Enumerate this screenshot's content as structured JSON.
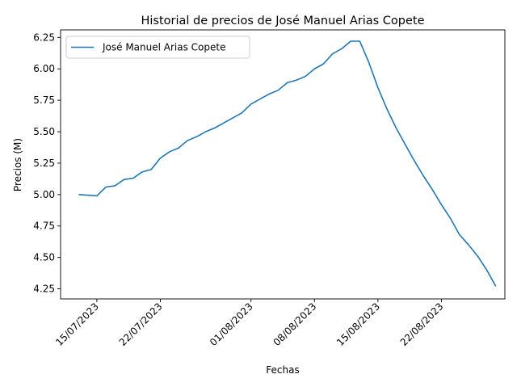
{
  "chart_data": {
    "type": "line",
    "title": "Historial de precios de José Manuel Arias Copete",
    "xlabel": "Fechas",
    "ylabel": "Precios (M)",
    "legend_position": "upper-left",
    "grid": false,
    "xlim": [
      "2023-07-11",
      "2023-08-29"
    ],
    "ylim": [
      4.17,
      6.31
    ],
    "x_ticks": [
      {
        "date": "2023-07-15",
        "label": "15/07/2023"
      },
      {
        "date": "2023-07-22",
        "label": "22/07/2023"
      },
      {
        "date": "2023-08-01",
        "label": "01/08/2023"
      },
      {
        "date": "2023-08-08",
        "label": "08/08/2023"
      },
      {
        "date": "2023-08-15",
        "label": "15/08/2023"
      },
      {
        "date": "2023-08-22",
        "label": "22/08/2023"
      }
    ],
    "y_ticks": [
      {
        "value": 4.25,
        "label": "4.25"
      },
      {
        "value": 4.5,
        "label": "4.50"
      },
      {
        "value": 4.75,
        "label": "4.75"
      },
      {
        "value": 5.0,
        "label": "5.00"
      },
      {
        "value": 5.25,
        "label": "5.25"
      },
      {
        "value": 5.5,
        "label": "5.50"
      },
      {
        "value": 5.75,
        "label": "5.75"
      },
      {
        "value": 6.0,
        "label": "6.00"
      },
      {
        "value": 6.25,
        "label": "6.25"
      }
    ],
    "series": [
      {
        "name": "José Manuel Arias Copete",
        "color": "#1f77b4",
        "x": [
          "2023-07-13",
          "2023-07-15",
          "2023-07-16",
          "2023-07-17",
          "2023-07-18",
          "2023-07-19",
          "2023-07-20",
          "2023-07-21",
          "2023-07-22",
          "2023-07-23",
          "2023-07-24",
          "2023-07-25",
          "2023-07-26",
          "2023-07-27",
          "2023-07-28",
          "2023-07-29",
          "2023-07-30",
          "2023-07-31",
          "2023-08-01",
          "2023-08-02",
          "2023-08-03",
          "2023-08-04",
          "2023-08-05",
          "2023-08-06",
          "2023-08-07",
          "2023-08-08",
          "2023-08-09",
          "2023-08-10",
          "2023-08-11",
          "2023-08-12",
          "2023-08-13",
          "2023-08-14",
          "2023-08-15",
          "2023-08-16",
          "2023-08-17",
          "2023-08-18",
          "2023-08-19",
          "2023-08-20",
          "2023-08-21",
          "2023-08-22",
          "2023-08-23",
          "2023-08-24",
          "2023-08-25",
          "2023-08-26",
          "2023-08-27",
          "2023-08-28"
        ],
        "y": [
          5.0,
          4.99,
          5.06,
          5.07,
          5.12,
          5.13,
          5.18,
          5.2,
          5.29,
          5.34,
          5.37,
          5.43,
          5.46,
          5.5,
          5.53,
          5.57,
          5.61,
          5.65,
          5.72,
          5.76,
          5.8,
          5.83,
          5.89,
          5.91,
          5.94,
          6.0,
          6.04,
          6.12,
          6.16,
          6.22,
          6.22,
          6.05,
          5.85,
          5.68,
          5.53,
          5.4,
          5.27,
          5.15,
          5.04,
          4.92,
          4.81,
          4.68,
          4.6,
          4.51,
          4.4,
          4.27
        ]
      }
    ]
  }
}
